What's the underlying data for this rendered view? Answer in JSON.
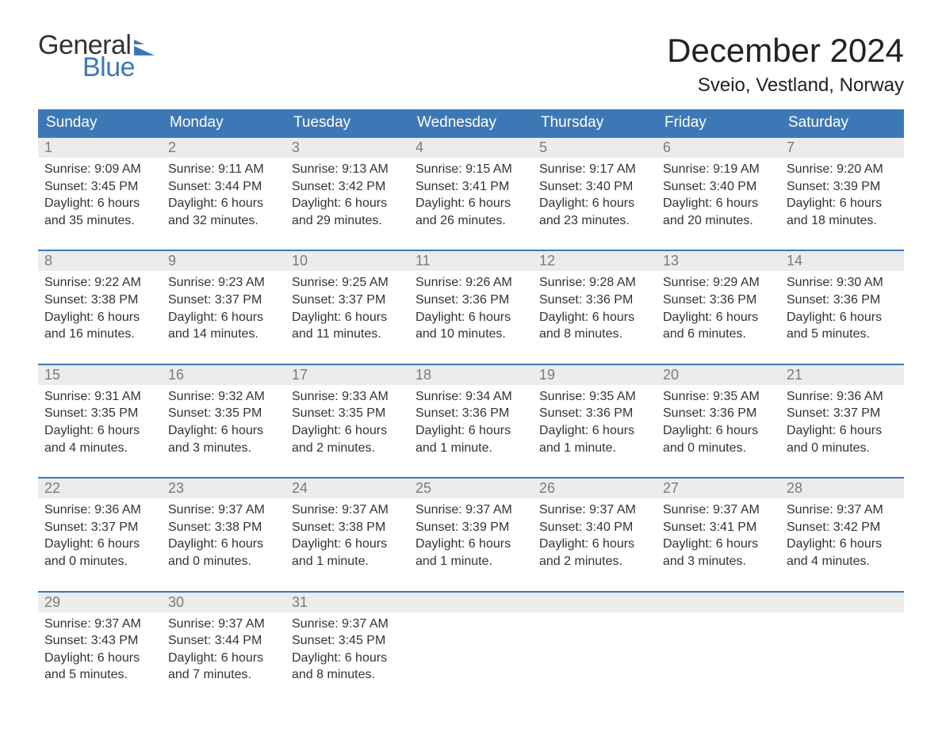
{
  "logo": {
    "word1": "General",
    "word2": "Blue",
    "text_color": "#333333",
    "blue_color": "#3d78b6"
  },
  "header": {
    "month": "December 2024",
    "location": "Sveio, Vestland, Norway"
  },
  "styling": {
    "header_bg": "#3d78b6",
    "header_text": "#ffffff",
    "daynum_bg": "#ececec",
    "daynum_text": "#7a7a7a",
    "body_text": "#333333",
    "row_divider": "#3d78b6",
    "page_bg": "#ffffff",
    "header_fontsize": 19,
    "month_fontsize": 42,
    "location_fontsize": 24,
    "cell_fontsize": 16
  },
  "day_names": [
    "Sunday",
    "Monday",
    "Tuesday",
    "Wednesday",
    "Thursday",
    "Friday",
    "Saturday"
  ],
  "weeks": [
    [
      {
        "n": "1",
        "sr": "Sunrise: 9:09 AM",
        "ss": "Sunset: 3:45 PM",
        "d1": "Daylight: 6 hours",
        "d2": "and 35 minutes."
      },
      {
        "n": "2",
        "sr": "Sunrise: 9:11 AM",
        "ss": "Sunset: 3:44 PM",
        "d1": "Daylight: 6 hours",
        "d2": "and 32 minutes."
      },
      {
        "n": "3",
        "sr": "Sunrise: 9:13 AM",
        "ss": "Sunset: 3:42 PM",
        "d1": "Daylight: 6 hours",
        "d2": "and 29 minutes."
      },
      {
        "n": "4",
        "sr": "Sunrise: 9:15 AM",
        "ss": "Sunset: 3:41 PM",
        "d1": "Daylight: 6 hours",
        "d2": "and 26 minutes."
      },
      {
        "n": "5",
        "sr": "Sunrise: 9:17 AM",
        "ss": "Sunset: 3:40 PM",
        "d1": "Daylight: 6 hours",
        "d2": "and 23 minutes."
      },
      {
        "n": "6",
        "sr": "Sunrise: 9:19 AM",
        "ss": "Sunset: 3:40 PM",
        "d1": "Daylight: 6 hours",
        "d2": "and 20 minutes."
      },
      {
        "n": "7",
        "sr": "Sunrise: 9:20 AM",
        "ss": "Sunset: 3:39 PM",
        "d1": "Daylight: 6 hours",
        "d2": "and 18 minutes."
      }
    ],
    [
      {
        "n": "8",
        "sr": "Sunrise: 9:22 AM",
        "ss": "Sunset: 3:38 PM",
        "d1": "Daylight: 6 hours",
        "d2": "and 16 minutes."
      },
      {
        "n": "9",
        "sr": "Sunrise: 9:23 AM",
        "ss": "Sunset: 3:37 PM",
        "d1": "Daylight: 6 hours",
        "d2": "and 14 minutes."
      },
      {
        "n": "10",
        "sr": "Sunrise: 9:25 AM",
        "ss": "Sunset: 3:37 PM",
        "d1": "Daylight: 6 hours",
        "d2": "and 11 minutes."
      },
      {
        "n": "11",
        "sr": "Sunrise: 9:26 AM",
        "ss": "Sunset: 3:36 PM",
        "d1": "Daylight: 6 hours",
        "d2": "and 10 minutes."
      },
      {
        "n": "12",
        "sr": "Sunrise: 9:28 AM",
        "ss": "Sunset: 3:36 PM",
        "d1": "Daylight: 6 hours",
        "d2": "and 8 minutes."
      },
      {
        "n": "13",
        "sr": "Sunrise: 9:29 AM",
        "ss": "Sunset: 3:36 PM",
        "d1": "Daylight: 6 hours",
        "d2": "and 6 minutes."
      },
      {
        "n": "14",
        "sr": "Sunrise: 9:30 AM",
        "ss": "Sunset: 3:36 PM",
        "d1": "Daylight: 6 hours",
        "d2": "and 5 minutes."
      }
    ],
    [
      {
        "n": "15",
        "sr": "Sunrise: 9:31 AM",
        "ss": "Sunset: 3:35 PM",
        "d1": "Daylight: 6 hours",
        "d2": "and 4 minutes."
      },
      {
        "n": "16",
        "sr": "Sunrise: 9:32 AM",
        "ss": "Sunset: 3:35 PM",
        "d1": "Daylight: 6 hours",
        "d2": "and 3 minutes."
      },
      {
        "n": "17",
        "sr": "Sunrise: 9:33 AM",
        "ss": "Sunset: 3:35 PM",
        "d1": "Daylight: 6 hours",
        "d2": "and 2 minutes."
      },
      {
        "n": "18",
        "sr": "Sunrise: 9:34 AM",
        "ss": "Sunset: 3:36 PM",
        "d1": "Daylight: 6 hours",
        "d2": "and 1 minute."
      },
      {
        "n": "19",
        "sr": "Sunrise: 9:35 AM",
        "ss": "Sunset: 3:36 PM",
        "d1": "Daylight: 6 hours",
        "d2": "and 1 minute."
      },
      {
        "n": "20",
        "sr": "Sunrise: 9:35 AM",
        "ss": "Sunset: 3:36 PM",
        "d1": "Daylight: 6 hours",
        "d2": "and 0 minutes."
      },
      {
        "n": "21",
        "sr": "Sunrise: 9:36 AM",
        "ss": "Sunset: 3:37 PM",
        "d1": "Daylight: 6 hours",
        "d2": "and 0 minutes."
      }
    ],
    [
      {
        "n": "22",
        "sr": "Sunrise: 9:36 AM",
        "ss": "Sunset: 3:37 PM",
        "d1": "Daylight: 6 hours",
        "d2": "and 0 minutes."
      },
      {
        "n": "23",
        "sr": "Sunrise: 9:37 AM",
        "ss": "Sunset: 3:38 PM",
        "d1": "Daylight: 6 hours",
        "d2": "and 0 minutes."
      },
      {
        "n": "24",
        "sr": "Sunrise: 9:37 AM",
        "ss": "Sunset: 3:38 PM",
        "d1": "Daylight: 6 hours",
        "d2": "and 1 minute."
      },
      {
        "n": "25",
        "sr": "Sunrise: 9:37 AM",
        "ss": "Sunset: 3:39 PM",
        "d1": "Daylight: 6 hours",
        "d2": "and 1 minute."
      },
      {
        "n": "26",
        "sr": "Sunrise: 9:37 AM",
        "ss": "Sunset: 3:40 PM",
        "d1": "Daylight: 6 hours",
        "d2": "and 2 minutes."
      },
      {
        "n": "27",
        "sr": "Sunrise: 9:37 AM",
        "ss": "Sunset: 3:41 PM",
        "d1": "Daylight: 6 hours",
        "d2": "and 3 minutes."
      },
      {
        "n": "28",
        "sr": "Sunrise: 9:37 AM",
        "ss": "Sunset: 3:42 PM",
        "d1": "Daylight: 6 hours",
        "d2": "and 4 minutes."
      }
    ],
    [
      {
        "n": "29",
        "sr": "Sunrise: 9:37 AM",
        "ss": "Sunset: 3:43 PM",
        "d1": "Daylight: 6 hours",
        "d2": "and 5 minutes."
      },
      {
        "n": "30",
        "sr": "Sunrise: 9:37 AM",
        "ss": "Sunset: 3:44 PM",
        "d1": "Daylight: 6 hours",
        "d2": "and 7 minutes."
      },
      {
        "n": "31",
        "sr": "Sunrise: 9:37 AM",
        "ss": "Sunset: 3:45 PM",
        "d1": "Daylight: 6 hours",
        "d2": "and 8 minutes."
      },
      null,
      null,
      null,
      null
    ]
  ]
}
